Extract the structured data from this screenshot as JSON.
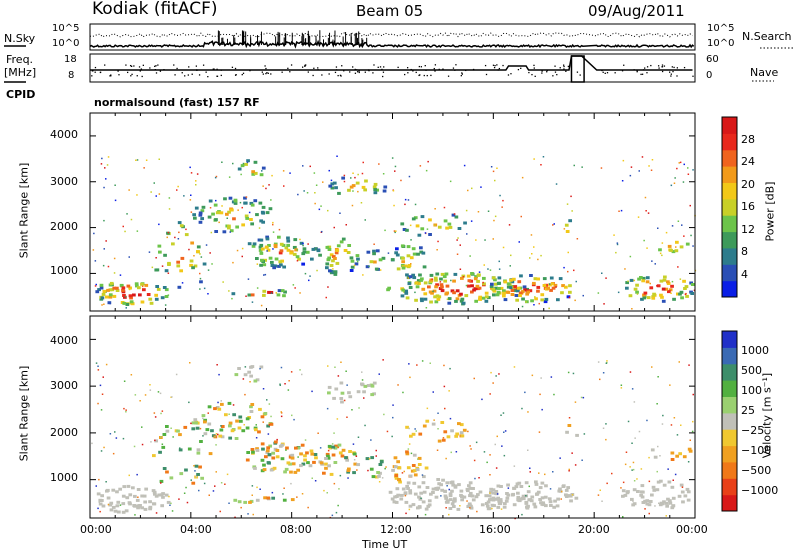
{
  "header": {
    "station": "Kodiak (fitACF)",
    "beam": "Beam 05",
    "date": "09/Aug/2011"
  },
  "top_panels": {
    "nsky_label": "N.Sky",
    "nsearch_label": "N.Search",
    "nsky_ticks": [
      "10^5",
      "10^0"
    ],
    "nsky_right_ticks": [
      "10^5",
      "10^0"
    ],
    "freq_label": "Freq.",
    "freq_unit": "[MHz]",
    "freq_ticks": [
      "18",
      "8"
    ],
    "nave_ticks": [
      "60",
      "0"
    ],
    "nave_label": "Nave",
    "cpid_label": "CPID",
    "cpid_text": "normalsound (fast) 157 RF"
  },
  "chart_data": [
    {
      "type": "heatmap",
      "name": "power-panel",
      "ylabel": "Slant Range [km]",
      "yticks": [
        "4000",
        "3000",
        "2000",
        "1000"
      ],
      "ylim": [
        180,
        4500
      ],
      "xlim": [
        0,
        24
      ],
      "colorbar_label": "Power [dB]",
      "colorbar_ticks": [
        "28",
        "24",
        "20",
        "16",
        "12",
        "8",
        "4"
      ],
      "colors": [
        "#0a1fe6",
        "#2a4fb5",
        "#2d7c8c",
        "#3d9a5a",
        "#6cc44a",
        "#c8d028",
        "#f2c818",
        "#f29a1a",
        "#f0641e",
        "#e8281c",
        "#d81818"
      ]
    },
    {
      "type": "heatmap",
      "name": "velocity-panel",
      "ylabel": "Slant Range [km]",
      "yticks": [
        "4000",
        "3000",
        "2000",
        "1000"
      ],
      "ylim": [
        180,
        4500
      ],
      "xlim": [
        0,
        24
      ],
      "colorbar_label": "Velocity [m s⁻¹]",
      "colorbar_ticks": [
        "1000",
        "500",
        "100",
        "25",
        "−25",
        "−100",
        "−500",
        "−1000"
      ],
      "colors": [
        "#2030c8",
        "#3a6ab4",
        "#3d8e6a",
        "#52b040",
        "#9ad070",
        "#c0c0b8",
        "#f0c830",
        "#f0a020",
        "#f07818",
        "#e84018",
        "#d81818"
      ]
    }
  ],
  "time_axis": {
    "label": "Time UT",
    "ticks": [
      "00:00",
      "04:00",
      "08:00",
      "12:00",
      "16:00",
      "20:00",
      "00:00"
    ]
  }
}
